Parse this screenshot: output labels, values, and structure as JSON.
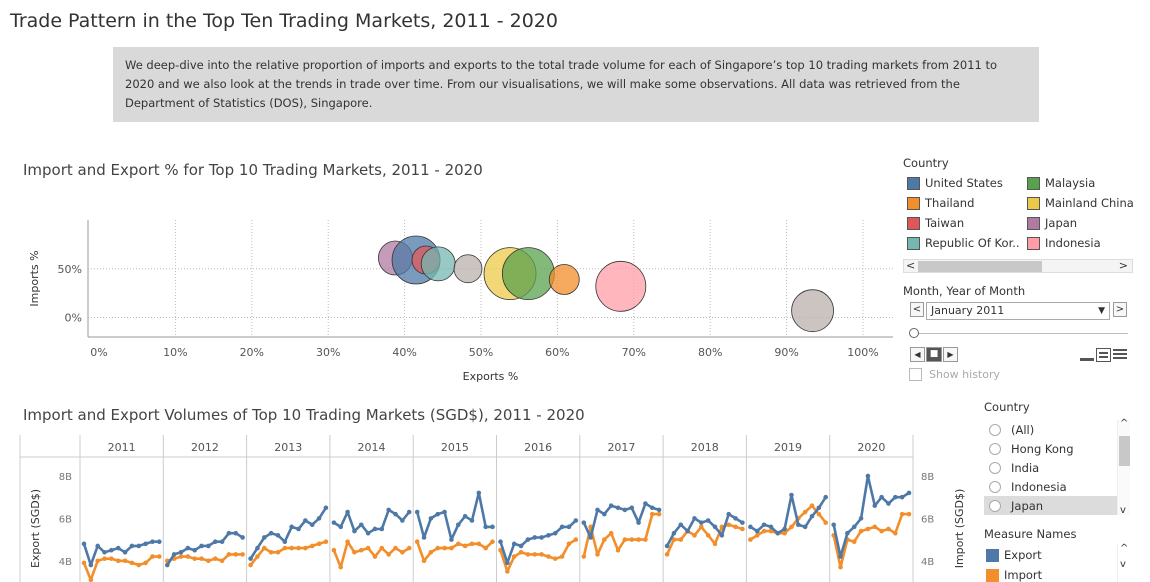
{
  "page": {
    "title": "Trade Pattern in the Top Ten Trading Markets, 2011 - 2020",
    "intro": "We deep-dive into the relative proportion of imports and exports to the total trade volume for each of Singapore’s top 10 trading markets from 2011 to 2020 and we also look at the trends in trade over time. From our visualisations, we will make some observations. All data was retrieved from the Department of Statistics (DOS), Singapore."
  },
  "scatter": {
    "title": "Import and Export % for Top 10 Trading Markets, 2011 - 2020"
  },
  "legend": {
    "title": "Country",
    "items": [
      {
        "label": "United States",
        "color": "#4e79a7"
      },
      {
        "label": "Malaysia",
        "color": "#59a14f"
      },
      {
        "label": "Thailand",
        "color": "#f28e2b"
      },
      {
        "label": "Mainland China",
        "color": "#edc948"
      },
      {
        "label": "Taiwan",
        "color": "#e15759"
      },
      {
        "label": "Japan",
        "color": "#b07aa1"
      },
      {
        "label": "Republic Of Kor..",
        "color": "#76b7b2"
      },
      {
        "label": "Indonesia",
        "color": "#ff9da7"
      }
    ]
  },
  "filter": {
    "title": "Month, Year of Month",
    "value": "January 2011",
    "show_history": "Show history"
  },
  "timeseries": {
    "title": "Import and Export Volumes of Top 10 Trading Markets (SGD$), 2011 - 2020"
  },
  "country_filter": {
    "title": "Country",
    "options": [
      "(All)",
      "Hong Kong",
      "India",
      "Indonesia",
      "Japan"
    ],
    "selected": "Japan"
  },
  "measure_legend": {
    "title": "Measure Names",
    "items": [
      {
        "label": "Export",
        "color": "#4e79a7"
      },
      {
        "label": "Import",
        "color": "#f28e2b"
      }
    ]
  },
  "icons": {
    "prev": "◀",
    "next": "▶",
    "stop": "■",
    "dropdown": "▼",
    "left": "<",
    "right": ">",
    "up": "^",
    "down": "v"
  },
  "chart_data": [
    {
      "type": "scatter",
      "title": "Import and Export % for Top 10 Trading Markets, 2011 - 2020",
      "xlabel": "Exports %",
      "ylabel": "Imports %",
      "x_ticks": [
        "0%",
        "10%",
        "20%",
        "30%",
        "40%",
        "50%",
        "60%",
        "70%",
        "80%",
        "90%",
        "100%"
      ],
      "y_ticks": [
        "0%",
        "50%"
      ],
      "xlim": [
        0,
        100
      ],
      "ylim": [
        -20,
        100
      ],
      "grid": true,
      "points": [
        {
          "name": "Japan",
          "x": 38.8,
          "y": 61,
          "size": 17,
          "color": "#b07aa1"
        },
        {
          "name": "United States",
          "x": 41.5,
          "y": 59,
          "size": 24,
          "color": "#4e79a7"
        },
        {
          "name": "Taiwan",
          "x": 42.8,
          "y": 59,
          "size": 14,
          "color": "#e15759"
        },
        {
          "name": "Republic Of Korea",
          "x": 44.4,
          "y": 55,
          "size": 17,
          "color": "#76b7b2"
        },
        {
          "name": "Hong Kong",
          "x": 48.3,
          "y": 50,
          "size": 14,
          "color": "#bab0ac"
        },
        {
          "name": "Mainland China",
          "x": 53.8,
          "y": 45,
          "size": 26,
          "color": "#edc948"
        },
        {
          "name": "Malaysia",
          "x": 56.2,
          "y": 45,
          "size": 26,
          "color": "#59a14f"
        },
        {
          "name": "Thailand",
          "x": 60.9,
          "y": 39,
          "size": 15,
          "color": "#f28e2b"
        },
        {
          "name": "Indonesia",
          "x": 68.3,
          "y": 32,
          "size": 25,
          "color": "#ff9da7"
        },
        {
          "name": "India",
          "x": 93.4,
          "y": 7,
          "size": 21,
          "color": "#bab0ac"
        }
      ]
    },
    {
      "type": "line",
      "title": "Import and Export Volumes of Top 10 Trading Markets (SGD$), 2011 - 2020",
      "ylabel_left": "Export (SGD$)",
      "ylabel_right": "Import (SGD$)",
      "y_ticks": [
        "4B",
        "6B",
        "8B"
      ],
      "ylim": [
        3.0,
        8.8
      ],
      "years": [
        "2011",
        "2012",
        "2013",
        "2014",
        "2015",
        "2016",
        "2017",
        "2018",
        "2019",
        "2020"
      ],
      "series": [
        {
          "name": "Export",
          "color": "#4e79a7",
          "years": [
            [
              4.8,
              3.8,
              4.7,
              4.4,
              4.5,
              4.6,
              4.4,
              4.7,
              4.7,
              4.8,
              4.9,
              4.9
            ],
            [
              3.8,
              4.3,
              4.4,
              4.6,
              4.5,
              4.7,
              4.7,
              4.9,
              4.9,
              5.3,
              5.3,
              5.1
            ],
            [
              4.1,
              4.6,
              5.1,
              5.3,
              5.2,
              4.9,
              5.6,
              5.5,
              5.9,
              5.7,
              6.0,
              6.5
            ],
            [
              5.8,
              5.6,
              6.3,
              5.4,
              5.7,
              5.3,
              5.5,
              5.5,
              6.4,
              6.2,
              5.9,
              6.3
            ],
            [
              6.3,
              5.1,
              6.0,
              6.2,
              6.3,
              5.0,
              5.7,
              6.1,
              5.9,
              7.2,
              5.6,
              5.6
            ],
            [
              4.9,
              3.9,
              4.8,
              4.7,
              5.0,
              5.1,
              5.1,
              5.2,
              5.3,
              5.6,
              5.6,
              5.9
            ],
            [
              5.8,
              5.1,
              6.4,
              6.2,
              6.6,
              6.5,
              6.4,
              6.5,
              5.8,
              6.7,
              6.5,
              6.4
            ],
            [
              4.7,
              5.3,
              5.7,
              5.4,
              6.0,
              5.8,
              5.9,
              5.6,
              5.2,
              6.2,
              6.0,
              5.8
            ],
            [
              5.6,
              5.4,
              5.7,
              5.6,
              5.3,
              5.5,
              7.1,
              5.7,
              5.6,
              6.1,
              6.5,
              7.0
            ],
            [
              5.7,
              4.2,
              5.3,
              5.6,
              6.0,
              8.0,
              6.6,
              7.0,
              6.7,
              7.0,
              7.0,
              7.2
            ]
          ]
        },
        {
          "name": "Import",
          "color": "#f28e2b",
          "years": [
            [
              3.9,
              3.1,
              4.0,
              4.1,
              4.1,
              4.0,
              4.0,
              3.9,
              3.8,
              3.9,
              4.2,
              4.2
            ],
            [
              4.0,
              4.1,
              4.2,
              4.2,
              4.1,
              4.1,
              4.0,
              4.1,
              4.0,
              4.3,
              4.3,
              4.3
            ],
            [
              3.8,
              4.2,
              4.6,
              4.4,
              4.4,
              4.6,
              4.6,
              4.6,
              4.6,
              4.7,
              4.8,
              4.9
            ],
            [
              4.5,
              3.7,
              4.9,
              4.4,
              4.5,
              4.6,
              4.2,
              4.6,
              4.3,
              4.6,
              4.4,
              4.6
            ],
            [
              4.9,
              4.0,
              4.4,
              4.6,
              4.6,
              4.6,
              4.8,
              4.7,
              4.8,
              4.8,
              4.6,
              4.9
            ],
            [
              4.5,
              3.5,
              4.2,
              4.4,
              4.3,
              4.3,
              4.3,
              4.2,
              4.1,
              4.2,
              4.8,
              5.0
            ],
            [
              4.2,
              5.6,
              4.3,
              5.0,
              5.3,
              4.5,
              5.0,
              5.0,
              5.0,
              5.0,
              6.2,
              6.2
            ],
            [
              4.3,
              5.0,
              5.0,
              5.4,
              5.2,
              5.6,
              5.2,
              4.8,
              5.6,
              5.7,
              5.6,
              5.5
            ],
            [
              5.0,
              5.2,
              5.4,
              5.4,
              5.3,
              5.3,
              5.6,
              6.0,
              6.3,
              6.6,
              6.2,
              5.8
            ],
            [
              5.2,
              3.7,
              5.0,
              4.9,
              5.4,
              5.5,
              5.6,
              5.4,
              5.5,
              5.3,
              6.2,
              6.2
            ]
          ]
        }
      ]
    }
  ]
}
